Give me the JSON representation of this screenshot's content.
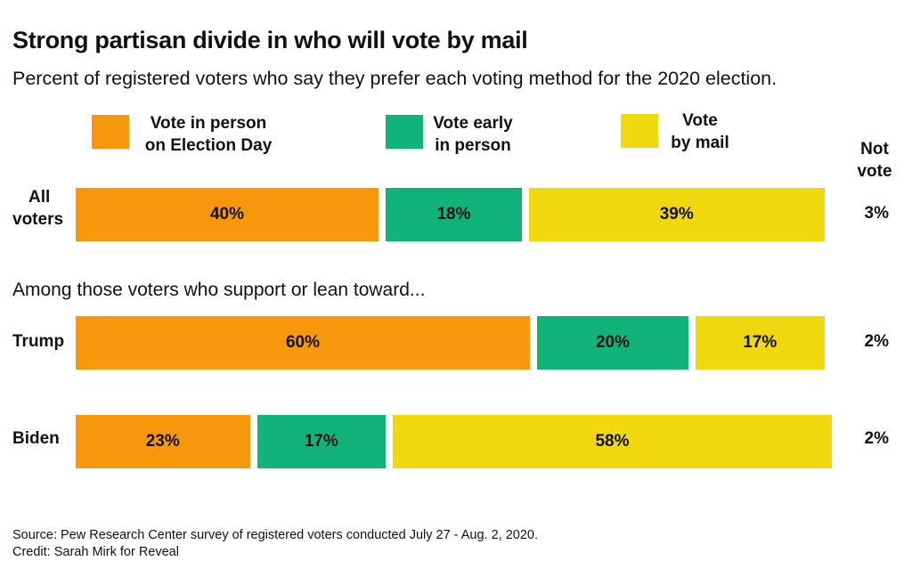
{
  "title": "Strong partisan divide in who will vote by mail",
  "subtitle": "Percent of registered voters who say they prefer each voting method for the 2020 election.",
  "among_label": "Among those voters who support or lean toward...",
  "legend": {
    "in_person_line1": "Vote in person",
    "in_person_line2": "on Election Day",
    "early_line1": "Vote early",
    "early_line2": "in person",
    "mail_line1": "Vote",
    "mail_line2": "by mail",
    "not_vote_line1": "Not",
    "not_vote_line2": "vote"
  },
  "colors": {
    "in_person": "#F7970C",
    "early": "#10B47A",
    "mail": "#EFD80D"
  },
  "chart_data": {
    "type": "bar",
    "orientation": "horizontal",
    "stacked": true,
    "categories": [
      "All voters",
      "Trump",
      "Biden"
    ],
    "series": [
      {
        "name": "Vote in person on Election Day",
        "values": [
          40,
          60,
          23
        ],
        "labels": [
          "40%",
          "60%",
          "23%"
        ]
      },
      {
        "name": "Vote early in person",
        "values": [
          18,
          20,
          17
        ],
        "labels": [
          "18%",
          "20%",
          "17%"
        ]
      },
      {
        "name": "Vote by mail",
        "values": [
          39,
          17,
          58
        ],
        "labels": [
          "39%",
          "17%",
          "58%"
        ]
      },
      {
        "name": "Not vote",
        "values": [
          3,
          2,
          2
        ],
        "labels": [
          "3%",
          "2%",
          "2%"
        ]
      }
    ],
    "unit": "%",
    "grid": false,
    "legend_position": "top"
  },
  "rows": [
    {
      "label_line1": "All",
      "label_line2": "voters"
    },
    {
      "label_line1": "Trump",
      "label_line2": ""
    },
    {
      "label_line1": "Biden",
      "label_line2": ""
    }
  ],
  "footer": {
    "source": "Source: Pew Research Center survey of registered voters conducted July 27 - Aug. 2, 2020.",
    "credit": "Credit: Sarah Mirk for Reveal"
  }
}
